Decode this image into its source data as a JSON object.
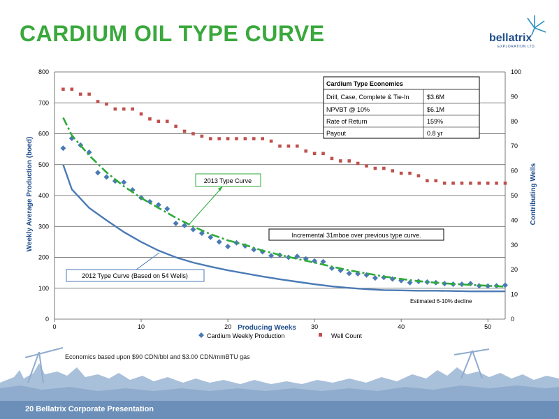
{
  "page": {
    "title": "CARDIUM OIL TYPE CURVE",
    "logo": {
      "name": "bellatrix",
      "subtitle": "EXPLORATION LTD."
    },
    "note": "Economics based upon $90 CDN/bbl and $3.00 CDN/mmBTU gas",
    "footer": "20  Bellatrix Corporate Presentation"
  },
  "colors": {
    "title": "#3aa83c",
    "type_curve_2012": "#4a7ab5",
    "type_curve_2013": "#2eab3a",
    "production": "#4a7ab5",
    "well_count": "#c0504d",
    "footer": "#6b8fb8"
  },
  "economics_table": {
    "title": "Cardium Type Economics",
    "rows": [
      {
        "label": "Drill, Case, Complete & Tie-In",
        "value": "$3.6M"
      },
      {
        "label": "NPVBT @ 10%",
        "value": "$6.1M"
      },
      {
        "label": "Rate of Return",
        "value": "159%"
      },
      {
        "label": "Payout",
        "value": "0.8 yr"
      }
    ]
  },
  "annotations": {
    "curve_2013": "2013 Type Curve",
    "curve_2012": "2012 Type Curve (Based on 54 Wells)",
    "incremental": "Incremental 31mboe over previous type curve.",
    "decline": "Estimated 6-10% decline"
  },
  "chart_data": {
    "type": "line",
    "xlabel": "Producing Weeks",
    "ylabel": "Weekly Average Production (boed)",
    "y2label": "Contributing Wells",
    "xlim": [
      0,
      52
    ],
    "ylim": [
      0,
      800
    ],
    "y2lim": [
      0,
      100
    ],
    "xticks": [
      0,
      10,
      20,
      30,
      40,
      50
    ],
    "yticks": [
      0,
      100,
      200,
      300,
      400,
      500,
      600,
      700,
      800
    ],
    "y2ticks": [
      0,
      10,
      20,
      30,
      40,
      50,
      60,
      70,
      80,
      90,
      100
    ],
    "grid": true,
    "legend": "bottom",
    "series": [
      {
        "name": "Cardium Weekly Production",
        "axis": "left",
        "style": "diamond",
        "x": [
          1,
          2,
          3,
          4,
          5,
          6,
          7,
          8,
          9,
          10,
          11,
          12,
          13,
          14,
          15,
          16,
          17,
          18,
          19,
          20,
          21,
          22,
          23,
          24,
          25,
          26,
          27,
          28,
          29,
          30,
          31,
          32,
          33,
          34,
          35,
          36,
          37,
          38,
          39,
          40,
          41,
          42,
          43,
          44,
          45,
          46,
          47,
          48,
          49,
          50,
          51,
          52
        ],
        "y": [
          553,
          585,
          563,
          540,
          474,
          460,
          447,
          443,
          418,
          393,
          380,
          370,
          357,
          310,
          303,
          290,
          278,
          265,
          250,
          235,
          247,
          237,
          225,
          218,
          205,
          207,
          200,
          203,
          195,
          188,
          186,
          165,
          158,
          148,
          147,
          143,
          133,
          135,
          130,
          125,
          118,
          122,
          120,
          118,
          115,
          113,
          113,
          115,
          108,
          107,
          108,
          110
        ]
      },
      {
        "name": "Well Count",
        "axis": "right",
        "style": "square",
        "x": [
          1,
          2,
          3,
          4,
          5,
          6,
          7,
          8,
          9,
          10,
          11,
          12,
          13,
          14,
          15,
          16,
          17,
          18,
          19,
          20,
          21,
          22,
          23,
          24,
          25,
          26,
          27,
          28,
          29,
          30,
          31,
          32,
          33,
          34,
          35,
          36,
          37,
          38,
          39,
          40,
          41,
          42,
          43,
          44,
          45,
          46,
          47,
          48,
          49,
          50,
          51,
          52
        ],
        "y": [
          93,
          93,
          91,
          91,
          88,
          87,
          85,
          85,
          85,
          83,
          81,
          80,
          80,
          78,
          76,
          75,
          74,
          73,
          73,
          73,
          73,
          73,
          73,
          73,
          72,
          70,
          70,
          70,
          68,
          67,
          67,
          65,
          64,
          64,
          63,
          62,
          61,
          61,
          60,
          59,
          59,
          58,
          56,
          56,
          55,
          55,
          55,
          55,
          55,
          55,
          55,
          55
        ]
      },
      {
        "name": "2013 Type Curve",
        "axis": "left",
        "style": "dashdot",
        "x": [
          1,
          2,
          4,
          6,
          8,
          10,
          12,
          14,
          16,
          18,
          20,
          22,
          24,
          26,
          28,
          30,
          32,
          34,
          36,
          38,
          40,
          42,
          44,
          46,
          48,
          50,
          52
        ],
        "y": [
          652,
          595,
          530,
          475,
          430,
          392,
          360,
          328,
          300,
          275,
          255,
          240,
          222,
          208,
          195,
          183,
          170,
          158,
          148,
          138,
          130,
          123,
          118,
          114,
          111,
          108,
          105
        ]
      },
      {
        "name": "2012 Type Curve",
        "axis": "left",
        "style": "solid",
        "x": [
          1,
          2,
          3,
          4,
          6,
          8,
          10,
          12,
          14,
          16,
          18,
          20,
          22,
          24,
          26,
          28,
          30,
          32,
          34,
          36,
          38,
          40,
          42,
          44,
          46,
          48,
          50,
          52
        ],
        "y": [
          500,
          420,
          390,
          360,
          320,
          282,
          250,
          222,
          200,
          183,
          170,
          158,
          148,
          138,
          129,
          121,
          113,
          106,
          101,
          97,
          94,
          93,
          92,
          92,
          91,
          90,
          90,
          90
        ]
      }
    ]
  }
}
